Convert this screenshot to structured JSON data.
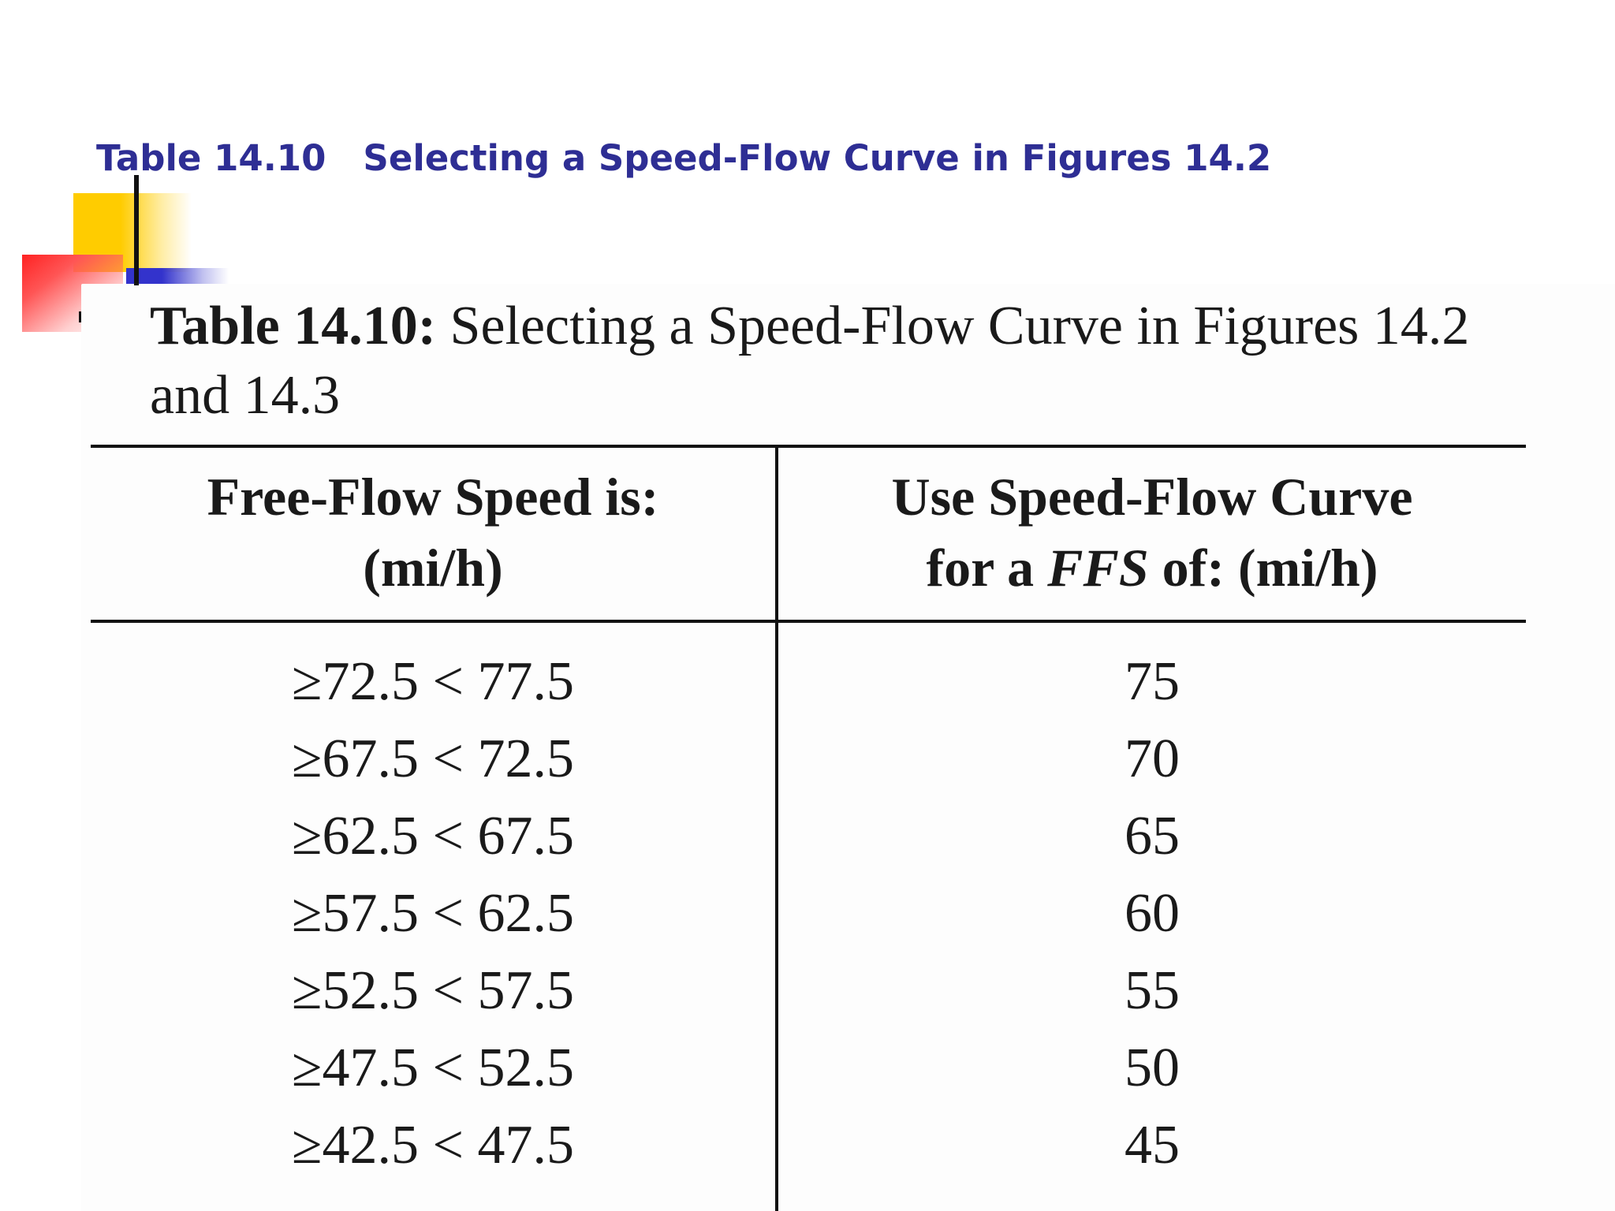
{
  "slide": {
    "title": "Table 14.10   Selecting a Speed-Flow Curve in Figures 14.2",
    "accent_colors": {
      "title": "#2e2e94",
      "yellow": "#ffcc00",
      "red": "#ff2222",
      "blue": "#3333cc"
    }
  },
  "table": {
    "caption_label": "Table 14.10:",
    "caption_text": "Selecting a Speed-Flow Curve in Figures 14.2 and 14.3",
    "headers": {
      "left_line1": "Free-Flow Speed is:",
      "left_line2": "(mi/h)",
      "right_line1": "Use Speed-Flow Curve",
      "right_line2_pre": "for a ",
      "right_line2_em": "FFS",
      "right_line2_post": " of: (mi/h)"
    },
    "rows": [
      {
        "range": "≥72.5 < 77.5",
        "ffs": "75"
      },
      {
        "range": "≥67.5 < 72.5",
        "ffs": "70"
      },
      {
        "range": "≥62.5 < 67.5",
        "ffs": "65"
      },
      {
        "range": "≥57.5 < 62.5",
        "ffs": "60"
      },
      {
        "range": "≥52.5 < 57.5",
        "ffs": "55"
      },
      {
        "range": "≥47.5 < 52.5",
        "ffs": "50"
      },
      {
        "range": "≥42.5 < 47.5",
        "ffs": "45"
      }
    ]
  }
}
